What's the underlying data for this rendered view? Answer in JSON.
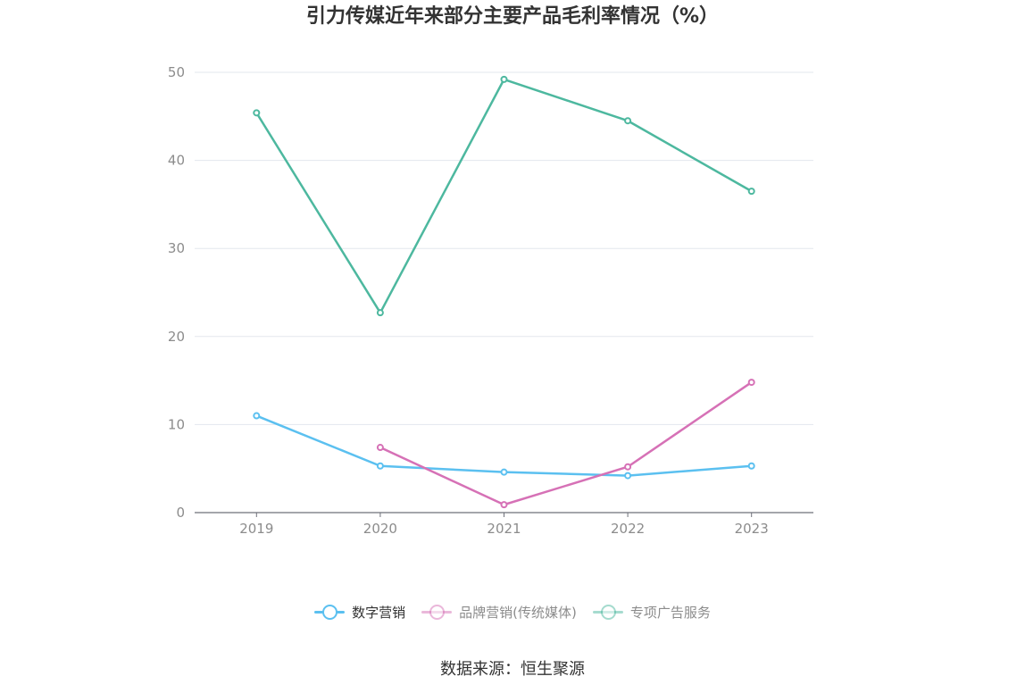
{
  "chart_data": {
    "type": "line",
    "title": "引力传媒近年来部分主要产品毛利率情况（%）",
    "categories": [
      "2019",
      "2020",
      "2021",
      "2022",
      "2023"
    ],
    "ylim": [
      0,
      50
    ],
    "yticks": [
      0,
      10,
      20,
      30,
      40,
      50
    ],
    "grid": true,
    "legend_position": "bottom",
    "series": [
      {
        "name": "数字营销",
        "color": "#5bc0f0",
        "values": [
          11.0,
          5.3,
          4.6,
          4.2,
          5.3
        ]
      },
      {
        "name": "品牌营销(传统媒体)",
        "color": "#d671b6",
        "values": [
          null,
          7.4,
          0.9,
          5.2,
          14.8
        ]
      },
      {
        "name": "专项广告服务",
        "color": "#4db89f",
        "values": [
          45.4,
          22.7,
          49.2,
          44.5,
          36.5
        ]
      }
    ],
    "source": "数据来源：恒生聚源"
  }
}
